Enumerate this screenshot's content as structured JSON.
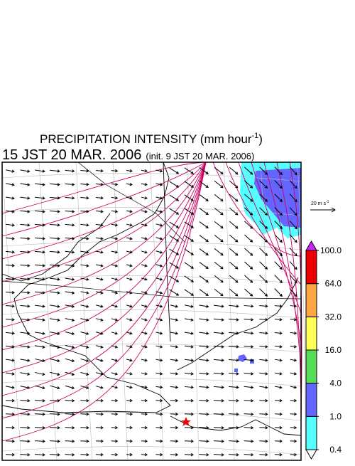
{
  "title": {
    "text": "PRECIPITATION INTENSITY (mm hour",
    "sup": "-1",
    "close": ")"
  },
  "subtitle": {
    "main": "15 JST 20 MAR. 2006",
    "init": "(init. 9 JST 20 MAR. 2006)"
  },
  "reference_vector": {
    "label": "20 m s",
    "sup": "-1"
  },
  "colorbar": {
    "levels": [
      {
        "value": 0.4,
        "label": "0.4"
      },
      {
        "value": 1,
        "label": "1.0"
      },
      {
        "value": 4,
        "label": "4.0"
      },
      {
        "value": 16,
        "label": "16.0"
      },
      {
        "value": 32,
        "label": "32.0"
      },
      {
        "value": 64,
        "label": "64.0"
      },
      {
        "value": 100,
        "label": "100.0"
      }
    ],
    "colors": [
      "#55ffff",
      "#6464ff",
      "#55dd55",
      "#ffff55",
      "#ffa544",
      "#ee0000"
    ],
    "below_color": "#ffffff",
    "above_color": "#cc22ff"
  }
}
